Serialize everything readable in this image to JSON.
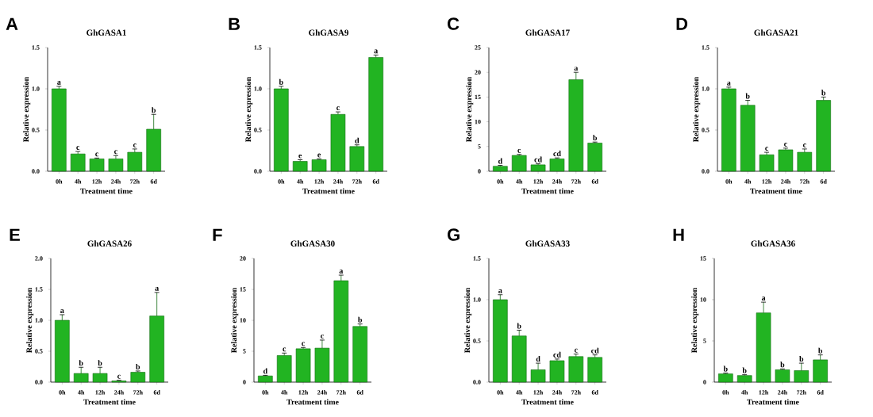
{
  "chart_data": [
    {
      "type": "bar",
      "title": "GhGASA1",
      "xlabel": "Treatment time",
      "ylabel": "Relative expression",
      "categories": [
        "0h",
        "4h",
        "12h",
        "24h",
        "72h",
        "6d"
      ],
      "values": [
        1.0,
        0.21,
        0.15,
        0.15,
        0.23,
        0.51
      ],
      "errors": [
        0.03,
        0.03,
        0.01,
        0.04,
        0.04,
        0.18
      ],
      "color": "#22b422",
      "ylim": [
        0,
        1.5
      ],
      "yticks": [
        {
          "value": 0,
          "label": "0.0"
        },
        {
          "value": 0.5,
          "label": "0.5"
        },
        {
          "value": 1.0,
          "label": "1.0"
        },
        {
          "value": 1.5,
          "label": "1.5"
        }
      ],
      "annotations": [
        "A",
        {
          "text": "a",
          "x": "0h",
          "y": 1.03
        },
        {
          "text": "c",
          "x": "4h",
          "y": 0.24
        },
        {
          "text": "c",
          "x": "12h",
          "y": 0.16
        },
        {
          "text": "c",
          "x": "24h",
          "y": 0.19
        },
        {
          "text": "c",
          "x": "72h",
          "y": 0.27
        },
        {
          "text": "b",
          "x": "6d",
          "y": 0.69
        }
      ]
    },
    {
      "type": "bar",
      "title": "GhGASA9",
      "xlabel": "Treatment time",
      "ylabel": "Relative expression",
      "categories": [
        "0h",
        "4h",
        "12h",
        "24h",
        "72h",
        "6d"
      ],
      "values": [
        1.0,
        0.12,
        0.14,
        0.69,
        0.3,
        1.38
      ],
      "errors": [
        0.03,
        0.02,
        0.01,
        0.03,
        0.02,
        0.03
      ],
      "color": "#22b422",
      "ylim": [
        0,
        1.5
      ],
      "yticks": [
        {
          "value": 0,
          "label": "0.0"
        },
        {
          "value": 0.5,
          "label": "0.5"
        },
        {
          "value": 1.0,
          "label": "1.0"
        },
        {
          "value": 1.5,
          "label": "1.5"
        }
      ],
      "annotations": [
        "B",
        {
          "text": "b",
          "x": "0h",
          "y": 1.03
        },
        {
          "text": "e",
          "x": "4h",
          "y": 0.14
        },
        {
          "text": "e",
          "x": "12h",
          "y": 0.15
        },
        {
          "text": "c",
          "x": "24h",
          "y": 0.72
        },
        {
          "text": "d",
          "x": "72h",
          "y": 0.32
        },
        {
          "text": "a",
          "x": "6d",
          "y": 1.41
        }
      ]
    },
    {
      "type": "bar",
      "title": "GhGASA17",
      "xlabel": "Treatment time",
      "ylabel": "Relative expression",
      "categories": [
        "0h",
        "4h",
        "12h",
        "24h",
        "72h",
        "6d"
      ],
      "values": [
        1.0,
        3.2,
        1.3,
        2.5,
        18.5,
        5.7
      ],
      "errors": [
        0.2,
        0.2,
        0.2,
        0.2,
        1.5,
        0.2
      ],
      "color": "#22b422",
      "ylim": [
        0,
        25
      ],
      "yticks": [
        0,
        5,
        10,
        15,
        20,
        25
      ],
      "annotations": [
        "C",
        {
          "text": "d",
          "x": "0h",
          "y": 1.2
        },
        {
          "text": "c",
          "x": "4h",
          "y": 3.4
        },
        {
          "text": "cd",
          "x": "12h",
          "y": 1.5
        },
        {
          "text": "cd",
          "x": "24h",
          "y": 2.7
        },
        {
          "text": "a",
          "x": "72h",
          "y": 20.0
        },
        {
          "text": "b",
          "x": "6d",
          "y": 5.9
        }
      ]
    },
    {
      "type": "bar",
      "title": "GhGASA21",
      "xlabel": "Treatment time",
      "ylabel": "Relative expression",
      "categories": [
        "0h",
        "4h",
        "12h",
        "24h",
        "72h",
        "6d"
      ],
      "values": [
        1.0,
        0.8,
        0.2,
        0.26,
        0.23,
        0.86
      ],
      "errors": [
        0.02,
        0.06,
        0.03,
        0.02,
        0.04,
        0.04
      ],
      "color": "#22b422",
      "ylim": [
        0,
        1.5
      ],
      "yticks": [
        {
          "value": 0,
          "label": "0.0"
        },
        {
          "value": 0.5,
          "label": "0.5"
        },
        {
          "value": 1.0,
          "label": "1.0"
        },
        {
          "value": 1.5,
          "label": "1.5"
        }
      ],
      "annotations": [
        "D",
        {
          "text": "a",
          "x": "0h",
          "y": 1.02
        },
        {
          "text": "b",
          "x": "4h",
          "y": 0.86
        },
        {
          "text": "c",
          "x": "12h",
          "y": 0.23
        },
        {
          "text": "c",
          "x": "24h",
          "y": 0.28
        },
        {
          "text": "c",
          "x": "72h",
          "y": 0.27
        },
        {
          "text": "b",
          "x": "6d",
          "y": 0.9
        }
      ]
    },
    {
      "type": "bar",
      "title": "GhGASA26",
      "xlabel": "Treatment time",
      "ylabel": "Relative expression",
      "categories": [
        "0h",
        "4h",
        "12h",
        "24h",
        "72h",
        "6d"
      ],
      "values": [
        1.0,
        0.14,
        0.14,
        0.02,
        0.16,
        1.07
      ],
      "errors": [
        0.09,
        0.1,
        0.1,
        0.01,
        0.02,
        0.38
      ],
      "color": "#22b422",
      "ylim": [
        0,
        2.0
      ],
      "yticks": [
        {
          "value": 0,
          "label": "0.0"
        },
        {
          "value": 0.5,
          "label": "0.5"
        },
        {
          "value": 1.0,
          "label": "1.0"
        },
        {
          "value": 1.5,
          "label": "1.5"
        },
        {
          "value": 2.0,
          "label": "2.0"
        }
      ],
      "annotations": [
        "E",
        {
          "text": "a",
          "x": "0h",
          "y": 1.09
        },
        {
          "text": "b",
          "x": "4h",
          "y": 0.24
        },
        {
          "text": "b",
          "x": "12h",
          "y": 0.24
        },
        {
          "text": "c",
          "x": "24h",
          "y": 0.03
        },
        {
          "text": "b",
          "x": "72h",
          "y": 0.18
        },
        {
          "text": "a",
          "x": "6d",
          "y": 1.45
        }
      ]
    },
    {
      "type": "bar",
      "title": "GhGASA30",
      "xlabel": "Treatment time",
      "ylabel": "Relative expression",
      "categories": [
        "0h",
        "4h",
        "12h",
        "24h",
        "72h",
        "6d"
      ],
      "values": [
        1.0,
        4.3,
        5.4,
        5.5,
        16.4,
        9.0
      ],
      "errors": [
        0.1,
        0.4,
        0.2,
        1.3,
        0.9,
        0.4
      ],
      "color": "#22b422",
      "ylim": [
        0,
        20
      ],
      "yticks": [
        0,
        5,
        10,
        15,
        20
      ],
      "annotations": [
        "F",
        {
          "text": "d",
          "x": "0h",
          "y": 1.1
        },
        {
          "text": "c",
          "x": "4h",
          "y": 4.7
        },
        {
          "text": "c",
          "x": "12h",
          "y": 5.6
        },
        {
          "text": "c",
          "x": "24h",
          "y": 6.8
        },
        {
          "text": "a",
          "x": "72h",
          "y": 17.3
        },
        {
          "text": "b",
          "x": "6d",
          "y": 9.4
        }
      ]
    },
    {
      "type": "bar",
      "title": "GhGASA33",
      "xlabel": "Treatment time",
      "ylabel": "Relative expression",
      "categories": [
        "0h",
        "4h",
        "12h",
        "24h",
        "72h",
        "6d"
      ],
      "values": [
        1.0,
        0.56,
        0.15,
        0.26,
        0.31,
        0.3
      ],
      "errors": [
        0.06,
        0.07,
        0.08,
        0.02,
        0.03,
        0.03
      ],
      "color": "#22b422",
      "ylim": [
        0,
        1.5
      ],
      "yticks": [
        {
          "value": 0,
          "label": "0.0"
        },
        {
          "value": 0.5,
          "label": "0.5"
        },
        {
          "value": 1.0,
          "label": "1.0"
        },
        {
          "value": 1.5,
          "label": "1.5"
        }
      ],
      "annotations": [
        "G",
        {
          "text": "a",
          "x": "0h",
          "y": 1.06
        },
        {
          "text": "b",
          "x": "4h",
          "y": 0.63
        },
        {
          "text": "d",
          "x": "12h",
          "y": 0.23
        },
        {
          "text": "cd",
          "x": "24h",
          "y": 0.28
        },
        {
          "text": "c",
          "x": "72h",
          "y": 0.34
        },
        {
          "text": "cd",
          "x": "6d",
          "y": 0.33
        }
      ]
    },
    {
      "type": "bar",
      "title": "GhGASA36",
      "xlabel": "Treatment time",
      "ylabel": "Relative expression",
      "categories": [
        "0h",
        "4h",
        "12h",
        "24h",
        "72h",
        "6d"
      ],
      "values": [
        1.0,
        0.8,
        8.4,
        1.5,
        1.4,
        2.7
      ],
      "errors": [
        0.1,
        0.1,
        1.3,
        0.1,
        0.9,
        0.6
      ],
      "color": "#22b422",
      "ylim": [
        0,
        15
      ],
      "yticks": [
        0,
        5,
        10,
        15
      ],
      "annotations": [
        "H",
        {
          "text": "b",
          "x": "0h",
          "y": 1.1
        },
        {
          "text": "b",
          "x": "4h",
          "y": 0.9
        },
        {
          "text": "a",
          "x": "12h",
          "y": 9.7
        },
        {
          "text": "b",
          "x": "24h",
          "y": 1.6
        },
        {
          "text": "b",
          "x": "72h",
          "y": 2.3
        },
        {
          "text": "b",
          "x": "6d",
          "y": 3.3
        }
      ]
    }
  ]
}
